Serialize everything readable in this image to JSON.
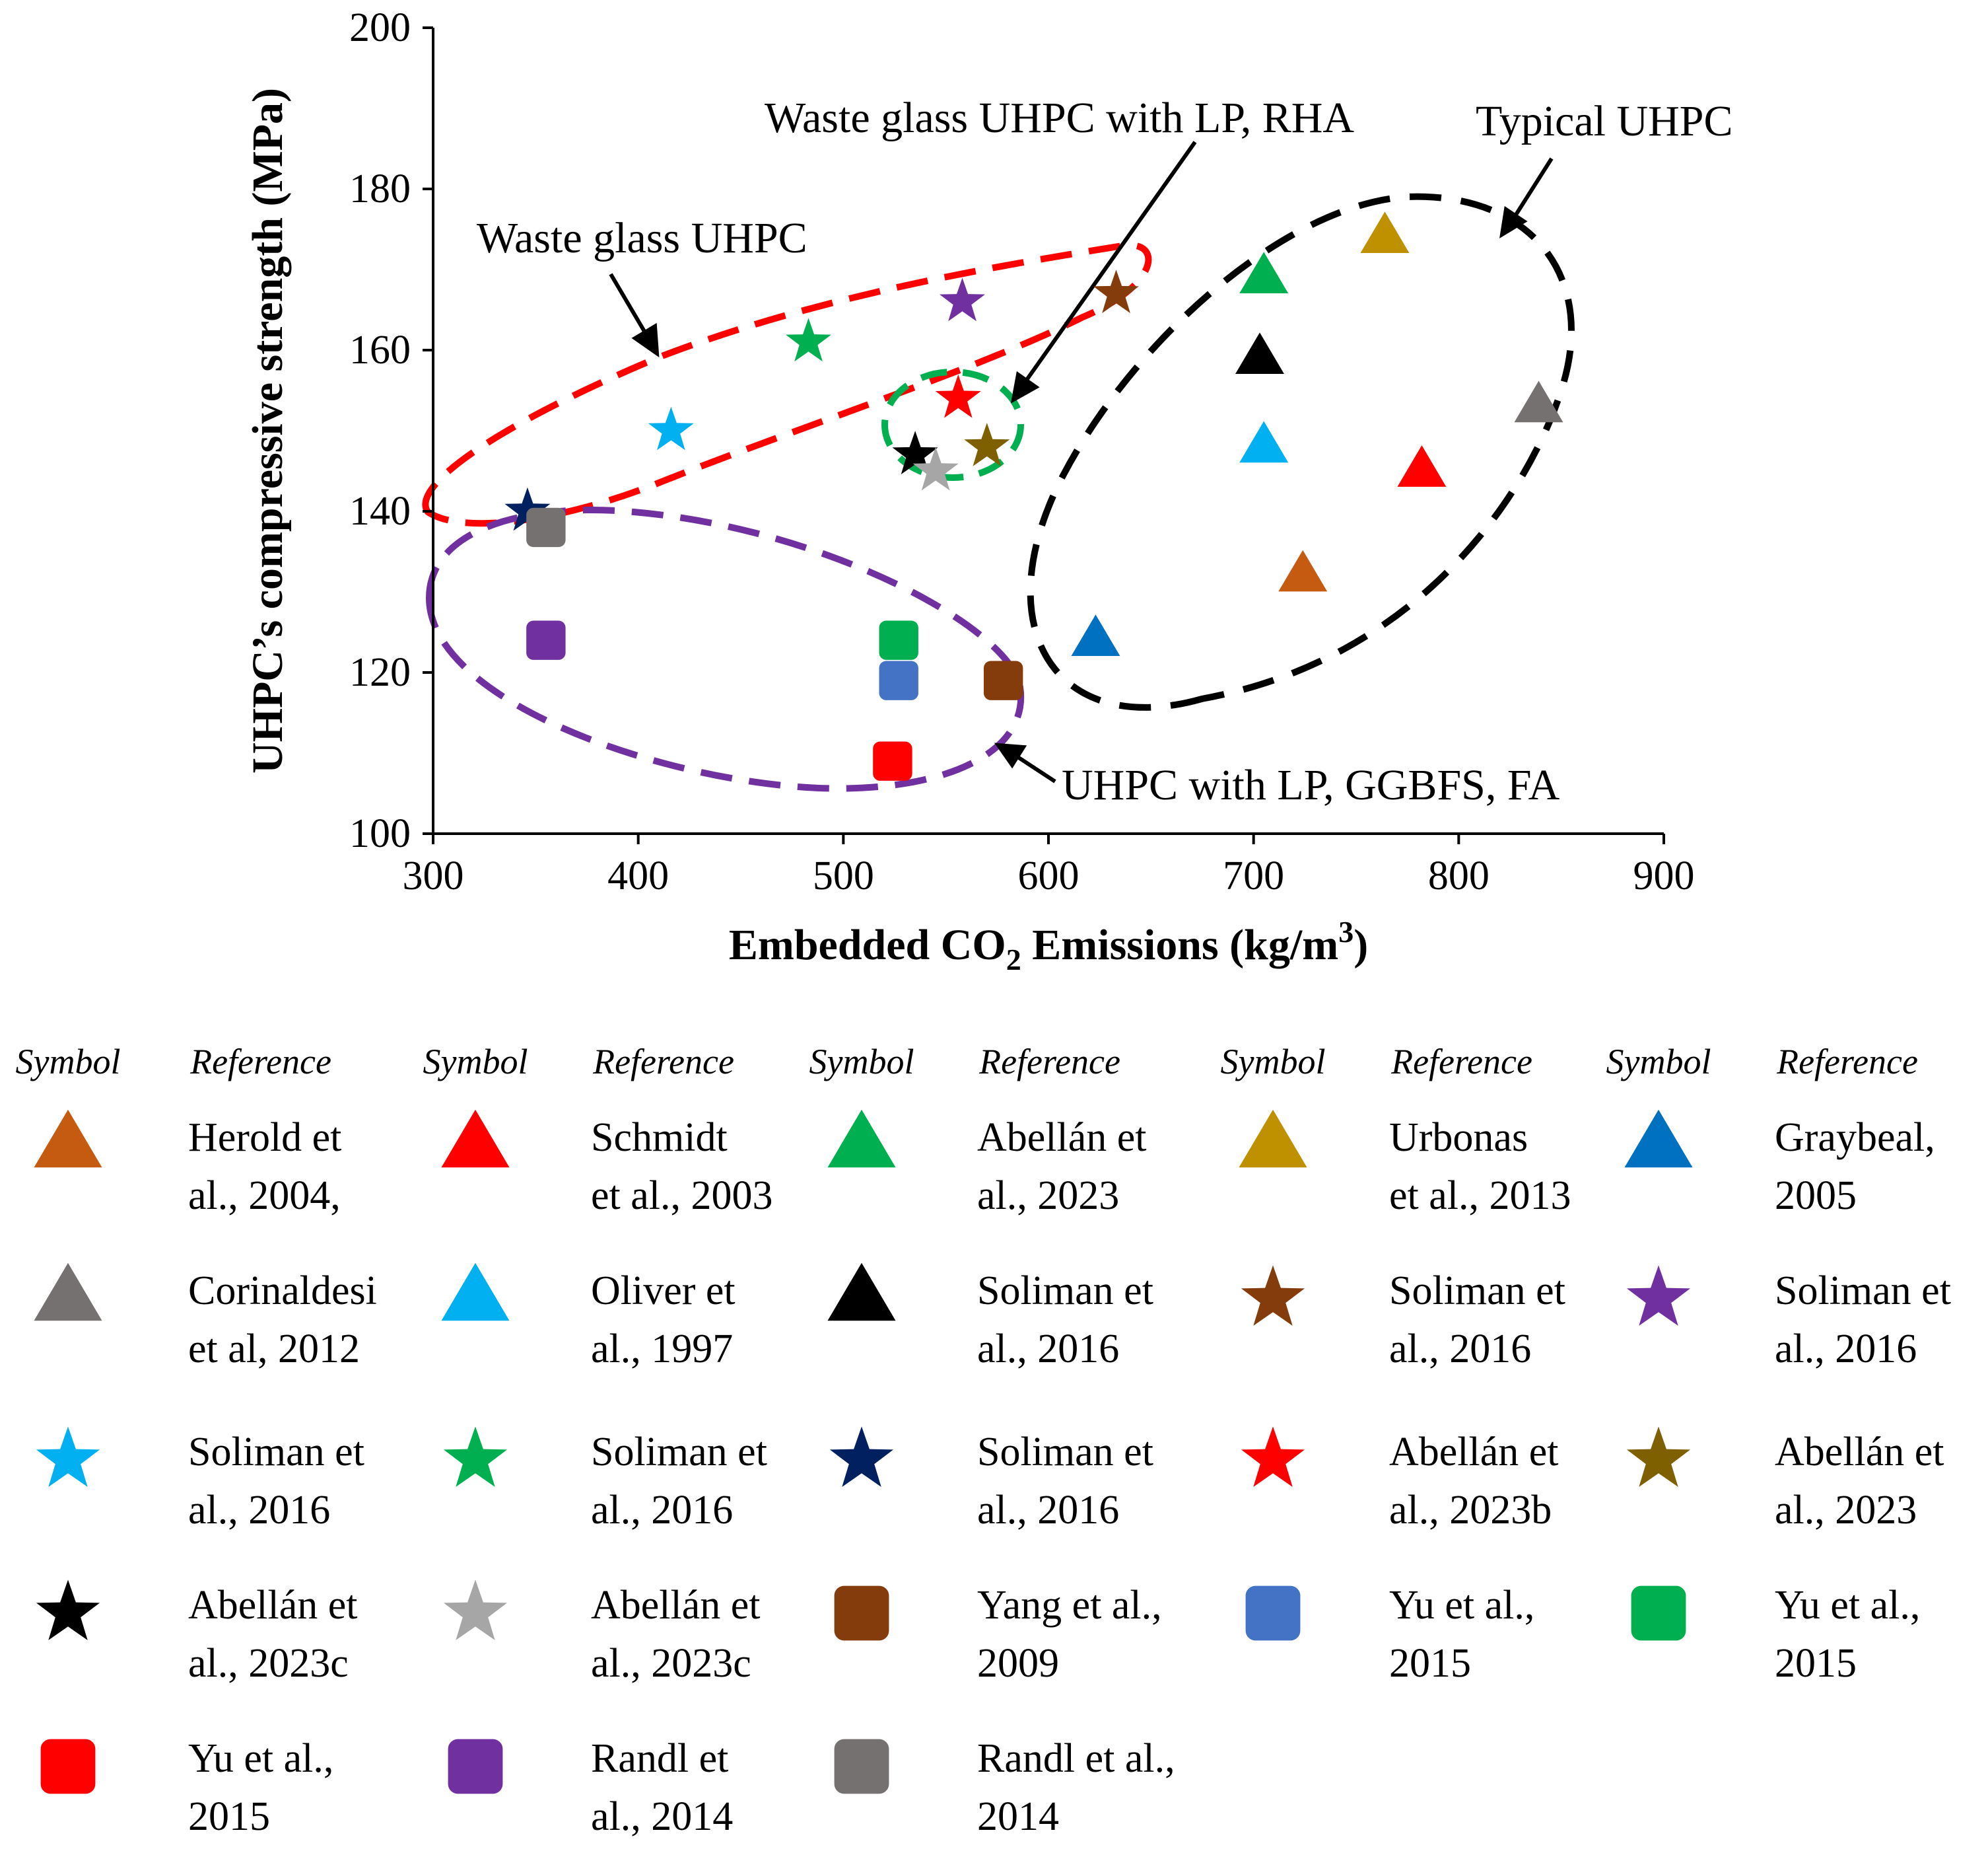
{
  "chart_data": {
    "type": "scatter",
    "xlabel_main": "Embedded CO",
    "xlabel_sub": "2",
    "xlabel_rest": " Emissions (kg/m",
    "xlabel_sup": "3",
    "xlabel_end": ")",
    "ylabel": "UHPC’s compressive strength (MPa)",
    "xlim": [
      300,
      900
    ],
    "ylim": [
      100,
      200
    ],
    "x_ticks": [
      "300",
      "400",
      "500",
      "600",
      "700",
      "800",
      "900"
    ],
    "y_ticks": [
      "100",
      "120",
      "140",
      "160",
      "180",
      "200"
    ],
    "points": [
      {
        "id": "p1",
        "shape": "triangle",
        "color": "#C55A11",
        "x": 724,
        "y": 132
      },
      {
        "id": "p2",
        "shape": "triangle",
        "color": "#FF0000",
        "x": 782,
        "y": 145
      },
      {
        "id": "p3",
        "shape": "triangle",
        "color": "#00B050",
        "x": 705,
        "y": 169
      },
      {
        "id": "p4",
        "shape": "triangle",
        "color": "#BF9000",
        "x": 764,
        "y": 174
      },
      {
        "id": "p5",
        "shape": "triangle",
        "color": "#0070C0",
        "x": 623,
        "y": 124
      },
      {
        "id": "p6",
        "shape": "triangle",
        "color": "#767171",
        "x": 839,
        "y": 153
      },
      {
        "id": "p7",
        "shape": "triangle",
        "color": "#00B0F0",
        "x": 705,
        "y": 148
      },
      {
        "id": "p8",
        "shape": "triangle",
        "color": "#000000",
        "x": 703,
        "y": 159
      },
      {
        "id": "p9",
        "shape": "star",
        "color": "#843C0C",
        "x": 633,
        "y": 167
      },
      {
        "id": "p10",
        "shape": "star",
        "color": "#7030A0",
        "x": 558,
        "y": 166
      },
      {
        "id": "p11",
        "shape": "star",
        "color": "#00B0F0",
        "x": 416,
        "y": 150
      },
      {
        "id": "p12",
        "shape": "star",
        "color": "#00B050",
        "x": 483,
        "y": 161
      },
      {
        "id": "p13",
        "shape": "star",
        "color": "#002060",
        "x": 346,
        "y": 140
      },
      {
        "id": "p14",
        "shape": "star",
        "color": "#FF0000",
        "x": 556,
        "y": 154
      },
      {
        "id": "p15",
        "shape": "star",
        "color": "#7F6000",
        "x": 570,
        "y": 148
      },
      {
        "id": "p16",
        "shape": "star",
        "color": "#000000",
        "x": 535,
        "y": 147
      },
      {
        "id": "p17",
        "shape": "star",
        "color": "#A6A6A6",
        "x": 545,
        "y": 145
      },
      {
        "id": "p18",
        "shape": "square",
        "color": "#843C0C",
        "x": 578,
        "y": 119
      },
      {
        "id": "p19",
        "shape": "square",
        "color": "#4472C4",
        "x": 527,
        "y": 119
      },
      {
        "id": "p20",
        "shape": "square",
        "color": "#00B050",
        "x": 527,
        "y": 124
      },
      {
        "id": "p21",
        "shape": "square",
        "color": "#FF0000",
        "x": 524,
        "y": 109
      },
      {
        "id": "p22",
        "shape": "square",
        "color": "#7030A0",
        "x": 355,
        "y": 124
      },
      {
        "id": "p23",
        "shape": "square",
        "color": "#767171",
        "x": 355,
        "y": 138
      }
    ],
    "annotations": [
      {
        "id": "a1",
        "text": "Waste glass UHPC"
      },
      {
        "id": "a2",
        "text": "Waste glass UHPC with LP, RHA"
      },
      {
        "id": "a3",
        "text": "Typical UHPC"
      },
      {
        "id": "a4",
        "text": "UHPC with LP, GGBFS, FA"
      }
    ],
    "region_colors": {
      "red": "#FF0000",
      "green": "#00B050",
      "black": "#000000",
      "purple": "#7030A0"
    }
  },
  "legend": {
    "symbol_header": "Symbol",
    "reference_header": "Reference",
    "rows": [
      [
        {
          "shape": "triangle",
          "color": "#C55A11",
          "ref1": "Herold et",
          "ref2": "al., 2004,"
        },
        {
          "shape": "triangle",
          "color": "#FF0000",
          "ref1": "Schmidt",
          "ref2": "et al., 2003"
        },
        {
          "shape": "triangle",
          "color": "#00B050",
          "ref1": "Abellán et",
          "ref2": "al., 2023"
        },
        {
          "shape": "triangle",
          "color": "#BF9000",
          "ref1": "Urbonas",
          "ref2": "et al., 2013"
        },
        {
          "shape": "triangle",
          "color": "#0070C0",
          "ref1": "Graybeal,",
          "ref2": "2005"
        }
      ],
      [
        {
          "shape": "triangle",
          "color": "#767171",
          "ref1": "Corinaldesi",
          "ref2": "et al, 2012"
        },
        {
          "shape": "triangle",
          "color": "#00B0F0",
          "ref1": "Oliver et",
          "ref2": "al., 1997"
        },
        {
          "shape": "triangle",
          "color": "#000000",
          "ref1": "Soliman et",
          "ref2": "al., 2016"
        },
        {
          "shape": "star",
          "color": "#843C0C",
          "ref1": "Soliman et",
          "ref2": "al., 2016"
        },
        {
          "shape": "star",
          "color": "#7030A0",
          "ref1": "Soliman et",
          "ref2": "al., 2016"
        }
      ],
      [
        {
          "shape": "star",
          "color": "#00B0F0",
          "ref1": "Soliman et",
          "ref2": "al., 2016"
        },
        {
          "shape": "star",
          "color": "#00B050",
          "ref1": "Soliman et",
          "ref2": "al., 2016"
        },
        {
          "shape": "star",
          "color": "#002060",
          "ref1": "Soliman et",
          "ref2": "al., 2016"
        },
        {
          "shape": "star",
          "color": "#FF0000",
          "ref1": "Abellán et",
          "ref2": "al., 2023b"
        },
        {
          "shape": "star",
          "color": "#7F6000",
          "ref1": "Abellán et",
          "ref2": "al., 2023"
        }
      ],
      [
        {
          "shape": "star",
          "color": "#000000",
          "ref1": "Abellán et",
          "ref2": "al., 2023c"
        },
        {
          "shape": "star",
          "color": "#A6A6A6",
          "ref1": "Abellán et",
          "ref2": "al., 2023c"
        },
        {
          "shape": "square",
          "color": "#843C0C",
          "ref1": "Yang et al.,",
          "ref2": "2009"
        },
        {
          "shape": "square",
          "color": "#4472C4",
          "ref1": "Yu et al.,",
          "ref2": "2015"
        },
        {
          "shape": "square",
          "color": "#00B050",
          "ref1": "Yu et al.,",
          "ref2": "2015"
        }
      ],
      [
        {
          "shape": "square",
          "color": "#FF0000",
          "ref1": "Yu et al.,",
          "ref2": "2015"
        },
        {
          "shape": "square",
          "color": "#7030A0",
          "ref1": "Randl et",
          "ref2": "al., 2014"
        },
        {
          "shape": "square",
          "color": "#767171",
          "ref1": "Randl et al.,",
          "ref2": "2014"
        }
      ]
    ]
  }
}
